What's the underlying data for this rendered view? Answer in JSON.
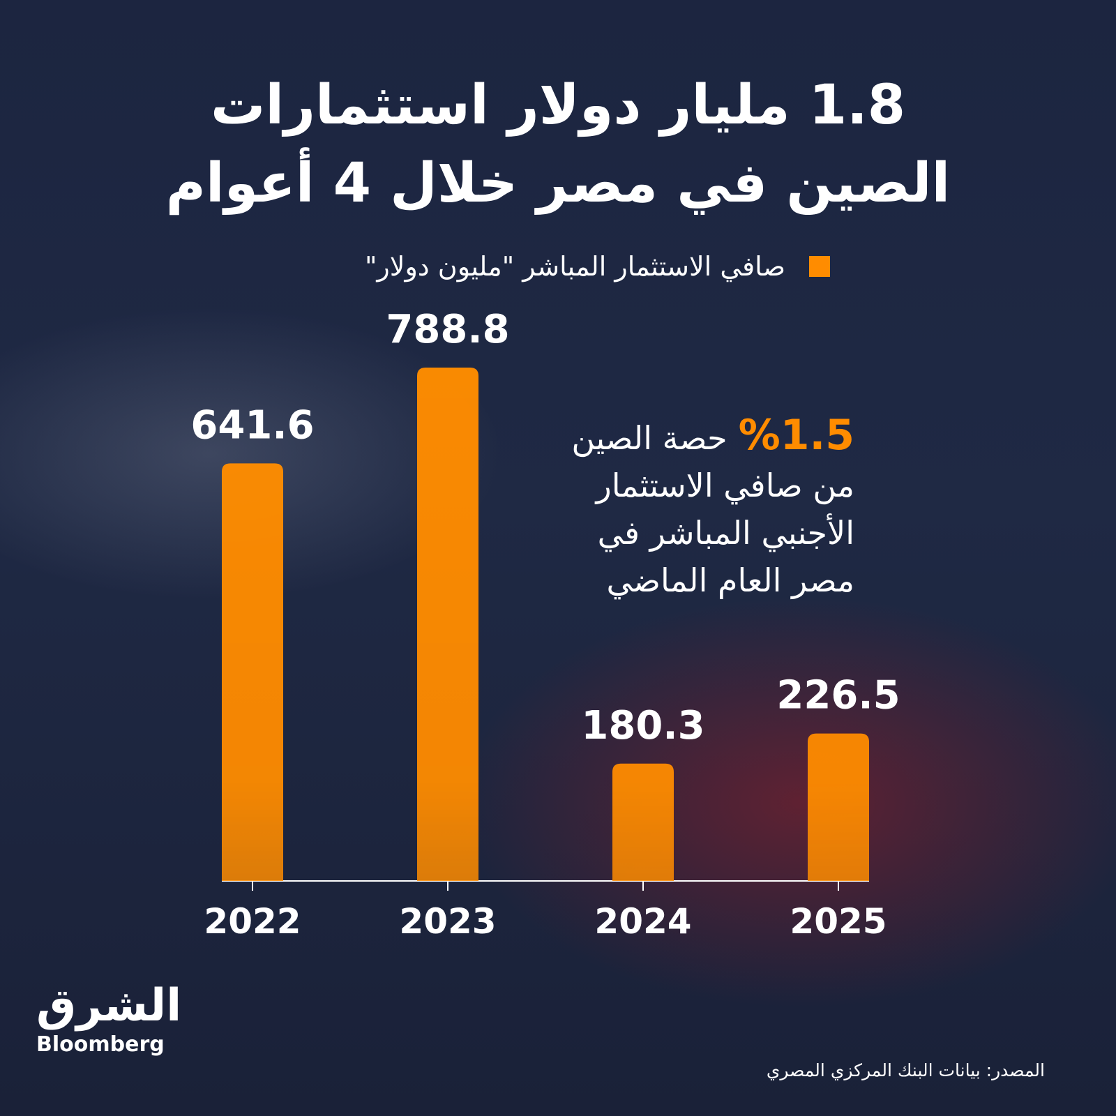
{
  "chart_data": {
    "type": "bar",
    "title": [
      "1.8 مليار دولار استثمارات",
      "الصين في مصر خلال 4 أعوام"
    ],
    "categories": [
      "2022",
      "2023",
      "2024",
      "2025"
    ],
    "series": [
      {
        "name": "صافي الاستثمار المباشر \"مليون دولار\"",
        "color": "#ff8c00",
        "values": [
          641.6,
          788.8,
          180.3,
          226.5
        ]
      }
    ],
    "annotation": {
      "highlight": "%1.5",
      "lines": [
        "حصة الصين",
        "من صافي الاستثمار",
        "الأجنبي المباشر في",
        "مصر العام الماضي"
      ]
    },
    "source": "المصدر: بيانات البنك المركزي المصري",
    "logo": {
      "arabic": "الشرق",
      "english": "Bloomberg"
    }
  }
}
